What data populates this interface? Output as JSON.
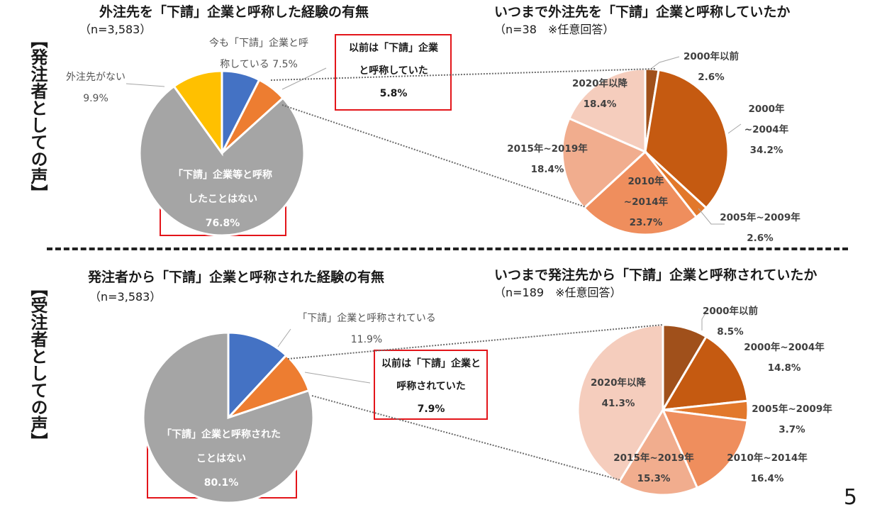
{
  "side_labels": {
    "orderer": "【発注者としての声】",
    "contractor": "【受注者としての声】"
  },
  "page_number": "5",
  "colors": {
    "blue": "#4472c4",
    "orange": "#ed7d31",
    "gray": "#a5a5a5",
    "yellow": "#ffc000",
    "red_box": "#e3151a"
  },
  "chart_data": [
    {
      "id": "orderer_experience",
      "type": "pie",
      "title": "外注先を「下請」企業と呼称した経験の有無",
      "subtitle": "（n=3,583）",
      "slices": [
        {
          "label_lines": [
            "今も「下請」企業と呼",
            "称している 7.5%"
          ],
          "value": 7.5,
          "color": "#4472c4"
        },
        {
          "label_lines": [
            "以前は「下請」企業",
            "と呼称していた",
            "5.8%"
          ],
          "value": 5.8,
          "color": "#ed7d31"
        },
        {
          "label_lines": [
            "「下請」企業等と呼称",
            "したことはない",
            "76.8%"
          ],
          "value": 76.8,
          "color": "#a5a5a5"
        },
        {
          "label_lines": [
            "外注先がない",
            "9.9%"
          ],
          "value": 9.9,
          "color": "#ffc000"
        }
      ]
    },
    {
      "id": "orderer_until",
      "type": "pie",
      "title": "いつまで外注先を「下請」企業と呼称していたか",
      "subtitle": "（n=38　※任意回答）",
      "slices": [
        {
          "label_lines": [
            "2000年以前",
            "2.6%"
          ],
          "value": 2.6,
          "color": "#a0501b"
        },
        {
          "label_lines": [
            "2000年",
            "~2004年",
            "34.2%"
          ],
          "value": 34.2,
          "color": "#c55a11"
        },
        {
          "label_lines": [
            "2005年~2009年",
            "2.6%"
          ],
          "value": 2.6,
          "color": "#e2782b"
        },
        {
          "label_lines": [
            "2010年",
            "~2014年",
            "23.7%"
          ],
          "value": 23.7,
          "color": "#ef8e5d"
        },
        {
          "label_lines": [
            "2015年~2019年",
            "18.4%"
          ],
          "value": 18.4,
          "color": "#f1ad8e"
        },
        {
          "label_lines": [
            "2020年以降",
            "18.4%"
          ],
          "value": 18.4,
          "color": "#f5cdbd"
        }
      ]
    },
    {
      "id": "contractor_experience",
      "type": "pie",
      "title": "発注者から「下請」企業と呼称された経験の有無",
      "subtitle": "（n=3,583）",
      "slices": [
        {
          "label_lines": [
            "「下請」企業と呼称されている",
            "11.9%"
          ],
          "value": 11.9,
          "color": "#4472c4"
        },
        {
          "label_lines": [
            "以前は「下請」企業と",
            "呼称されていた",
            "7.9%"
          ],
          "value": 7.9,
          "color": "#ed7d31"
        },
        {
          "label_lines": [
            "「下請」企業と呼称された",
            "ことはない",
            "80.1%"
          ],
          "value": 80.1,
          "color": "#a5a5a5"
        }
      ]
    },
    {
      "id": "contractor_until",
      "type": "pie",
      "title": "いつまで発注先から「下請」企業と呼称されていたか",
      "subtitle": "（n=189　※任意回答）",
      "slices": [
        {
          "label_lines": [
            "2000年以前",
            "8.5%"
          ],
          "value": 8.5,
          "color": "#a0501b"
        },
        {
          "label_lines": [
            "2000年~2004年",
            "14.8%"
          ],
          "value": 14.8,
          "color": "#c55a11"
        },
        {
          "label_lines": [
            "2005年~2009年",
            "3.7%"
          ],
          "value": 3.7,
          "color": "#e2782b"
        },
        {
          "label_lines": [
            "2010年~2014年",
            "16.4%"
          ],
          "value": 16.4,
          "color": "#ef8e5d"
        },
        {
          "label_lines": [
            "2015年~2019年",
            "15.3%"
          ],
          "value": 15.3,
          "color": "#f1ad8e"
        },
        {
          "label_lines": [
            "2020年以降",
            "41.3%"
          ],
          "value": 41.3,
          "color": "#f5cdbd"
        }
      ]
    }
  ]
}
